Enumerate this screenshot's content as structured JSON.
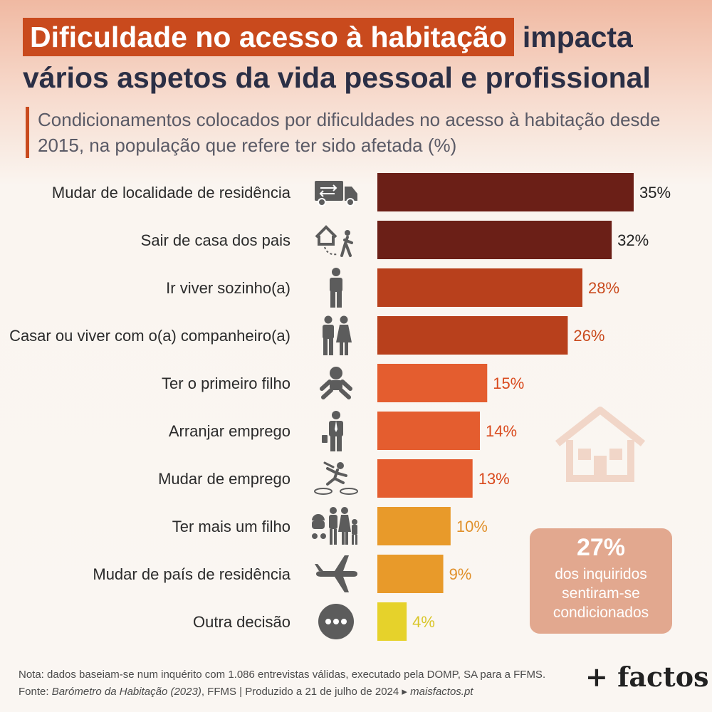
{
  "title": {
    "highlight": "Dificuldade no acesso à habitação",
    "rest_line1": "impacta",
    "line2": "vários aspetos da vida pessoal e profissional"
  },
  "subtitle": "Condicionamentos colocados por dificuldades no acesso à habitação desde 2015, na população que refere ter sido afetada (%)",
  "chart_data": {
    "type": "bar",
    "orientation": "horizontal",
    "categories": [
      "Mudar de localidade de residência",
      "Sair de casa dos pais",
      "Ir viver sozinho(a)",
      "Casar ou viver com o(a) companheiro(a)",
      "Ter o primeiro filho",
      "Arranjar emprego",
      "Mudar de emprego",
      "Ter mais um filho",
      "Mudar de país de residência",
      "Outra decisão"
    ],
    "values": [
      35,
      32,
      28,
      26,
      15,
      14,
      13,
      10,
      9,
      4
    ],
    "value_labels": [
      "35%",
      "32%",
      "28%",
      "26%",
      "15%",
      "14%",
      "13%",
      "10%",
      "9%",
      "4%"
    ],
    "icons": [
      "truck-icon",
      "leaving-home-icon",
      "person-icon",
      "couple-icon",
      "baby-icon",
      "businessman-icon",
      "jump-icon",
      "family-icon",
      "airplane-icon",
      "more-icon"
    ],
    "bar_colors": [
      "#6b1f17",
      "#6b1f17",
      "#b8401c",
      "#b8401c",
      "#e45d2f",
      "#e45d2f",
      "#e45d2f",
      "#e89a2a",
      "#e89a2a",
      "#e6d22b"
    ],
    "label_colors": [
      "#222222",
      "#222222",
      "#c94a1d",
      "#c94a1d",
      "#d94a1d",
      "#d94a1d",
      "#d94a1d",
      "#e0902a",
      "#e0902a",
      "#d9c62a"
    ],
    "xlim": [
      0,
      35
    ],
    "grid": false,
    "legend": "none"
  },
  "callout": {
    "value": "27%",
    "text": "dos inquiridos sentiram-se condicionados"
  },
  "footer": {
    "note": "Nota: dados baseiam-se num inquérito com 1.086 entrevistas válidas, executado pela DOMP, SA para a FFMS.",
    "source_prefix": "Fonte:",
    "source_italic": "Barómetro da Habitação (2023)",
    "source_rest": ", FFMS | Produzido a 21 de julho de 2024 ▸",
    "source_site": "maisfactos.pt"
  },
  "brand": "+ factos",
  "colors": {
    "accent": "#c94a1d",
    "title_dark": "#2b2f45",
    "icon_gray": "#5c5c5c",
    "callout_bg": "#e2a88f",
    "house_outline": "#f1d6c8"
  }
}
